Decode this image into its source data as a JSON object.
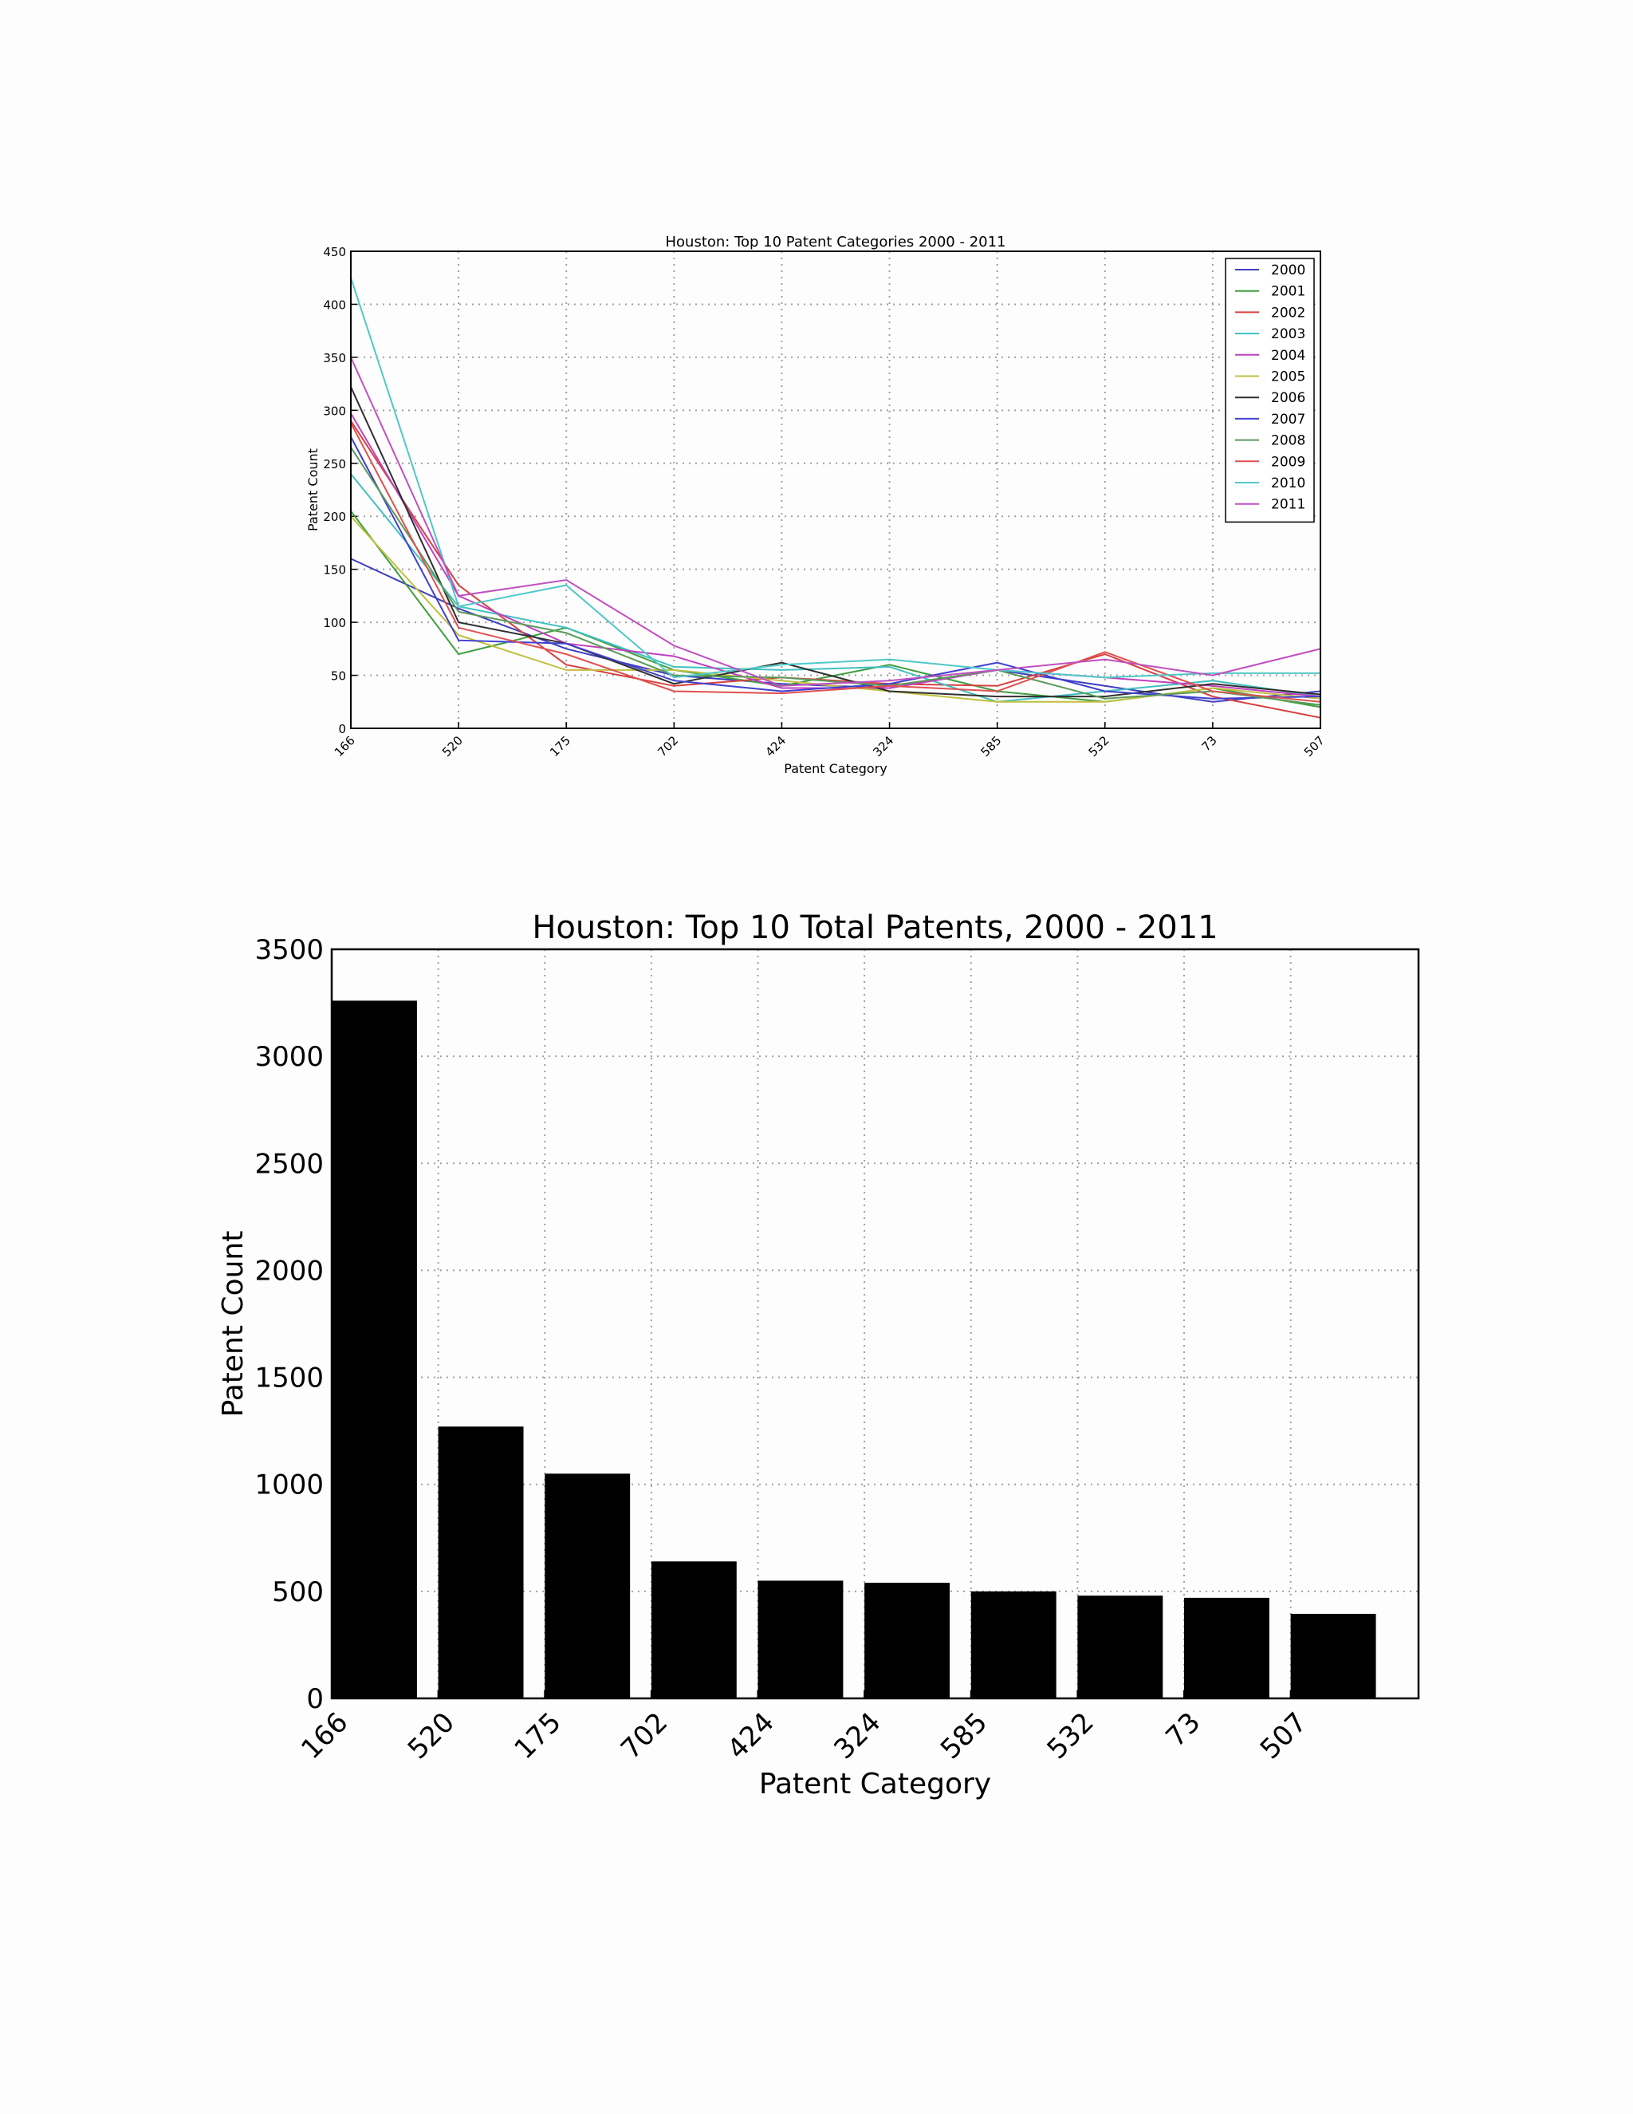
{
  "chart_data": [
    {
      "type": "line",
      "title": "Houston: Top 10 Patent Categories 2000 - 2011",
      "xlabel": "Patent Category",
      "ylabel": "Patent Count",
      "categories": [
        "166",
        "520",
        "175",
        "702",
        "424",
        "324",
        "585",
        "532",
        "73",
        "507"
      ],
      "ylim": [
        0,
        450
      ],
      "yticks": [
        0,
        50,
        100,
        150,
        200,
        250,
        300,
        350,
        400,
        450
      ],
      "grid": true,
      "legend": "top-right",
      "series": [
        {
          "name": "2000",
          "color": "#3f3fbf",
          "values": [
            160,
            113,
            75,
            50,
            42,
            38,
            55,
            40,
            25,
            35
          ]
        },
        {
          "name": "2001",
          "color": "#3f9f3f",
          "values": [
            205,
            70,
            95,
            55,
            40,
            60,
            35,
            25,
            38,
            20
          ]
        },
        {
          "name": "2002",
          "color": "#d84040",
          "values": [
            290,
            135,
            60,
            40,
            48,
            42,
            40,
            70,
            30,
            10
          ]
        },
        {
          "name": "2003",
          "color": "#40c0c0",
          "values": [
            240,
            115,
            95,
            58,
            55,
            58,
            25,
            35,
            45,
            30
          ]
        },
        {
          "name": "2004",
          "color": "#c040c0",
          "values": [
            297,
            125,
            80,
            68,
            38,
            38,
            55,
            48,
            40,
            30
          ]
        },
        {
          "name": "2005",
          "color": "#c0c040",
          "values": [
            200,
            88,
            55,
            55,
            45,
            35,
            25,
            25,
            38,
            28
          ]
        },
        {
          "name": "2006",
          "color": "#303030",
          "values": [
            322,
            100,
            80,
            42,
            62,
            35,
            30,
            30,
            42,
            32
          ]
        },
        {
          "name": "2007",
          "color": "#4040d0",
          "values": [
            275,
            83,
            80,
            45,
            35,
            42,
            62,
            35,
            28,
            30
          ]
        },
        {
          "name": "2008",
          "color": "#5a9a5a",
          "values": [
            265,
            110,
            90,
            50,
            48,
            40,
            55,
            28,
            35,
            22
          ]
        },
        {
          "name": "2009",
          "color": "#e05050",
          "values": [
            288,
            95,
            70,
            35,
            33,
            40,
            35,
            72,
            35,
            25
          ]
        },
        {
          "name": "2010",
          "color": "#50c8c8",
          "values": [
            425,
            115,
            135,
            48,
            60,
            65,
            55,
            48,
            52,
            52
          ]
        },
        {
          "name": "2011",
          "color": "#c050c0",
          "values": [
            350,
            125,
            140,
            78,
            40,
            45,
            55,
            65,
            50,
            75
          ]
        }
      ]
    },
    {
      "type": "bar",
      "title": "Houston: Top 10 Total Patents, 2000 - 2011",
      "xlabel": "Patent Category",
      "ylabel": "Patent Count",
      "categories": [
        "166",
        "520",
        "175",
        "702",
        "424",
        "324",
        "585",
        "532",
        "73",
        "507"
      ],
      "values": [
        3260,
        1270,
        1050,
        640,
        550,
        540,
        500,
        480,
        470,
        395
      ],
      "ylim": [
        0,
        3500
      ],
      "yticks": [
        0,
        500,
        1000,
        1500,
        2000,
        2500,
        3000,
        3500
      ],
      "grid": true,
      "color": "#000000"
    }
  ]
}
